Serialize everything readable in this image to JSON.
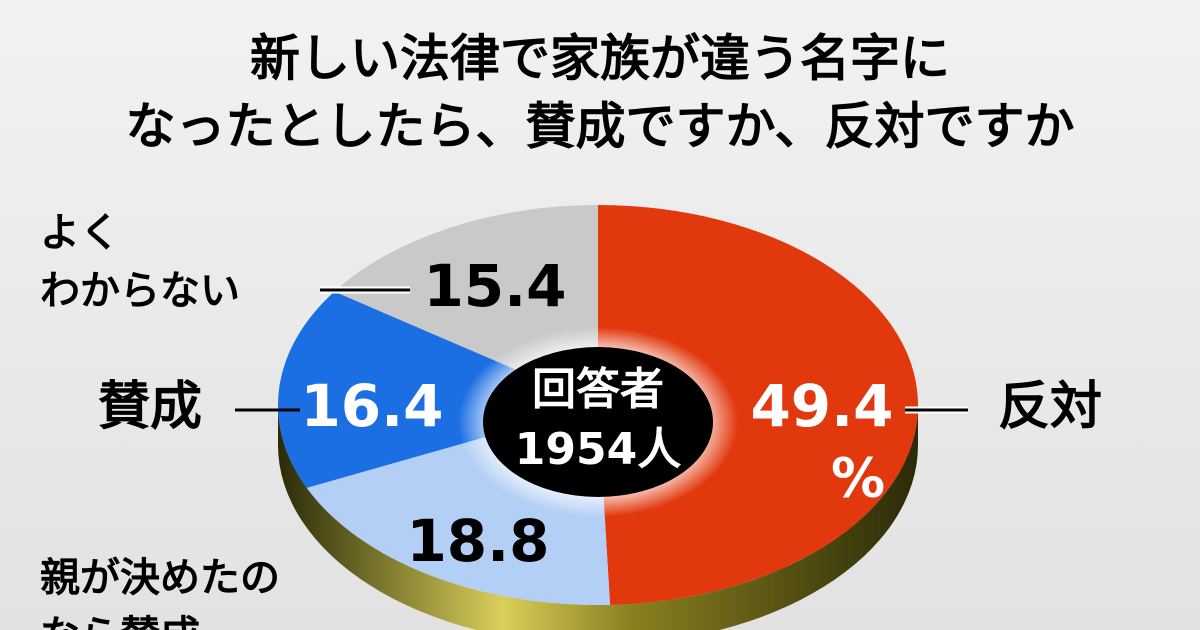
{
  "chart_data": {
    "type": "pie",
    "title": [
      "新しい法律で家族が違う名字に",
      "なったとしたら、賛成ですか、反対ですか"
    ],
    "categories": [
      [
        "反対"
      ],
      [
        "親が決めたの",
        "なら賛成"
      ],
      [
        "賛成"
      ],
      [
        "よく",
        "わからない"
      ]
    ],
    "values": [
      49.4,
      18.8,
      16.4,
      15.4
    ],
    "unit": "%",
    "colors": [
      "#e2380e",
      "#b3cff5",
      "#1b6fe3",
      "#c9c9c9"
    ],
    "center_label": [
      "回答者",
      "1954人"
    ]
  }
}
